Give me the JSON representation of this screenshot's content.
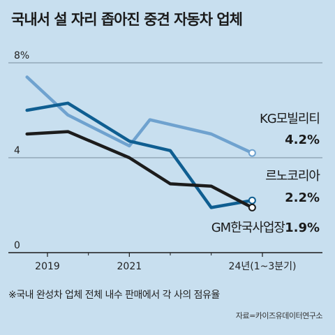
{
  "title": "국내서 설 자리 좁아진 중견 자동차 업체",
  "footnote": "※국내 완성차 업체 전체 내수 판매에서 각 사의 점유율",
  "source": "자료=카이즈유데이터연구소",
  "chart_data": {
    "type": "line",
    "title": "국내서 설 자리 좁아진 중견 자동차 업체",
    "ylim": [
      0,
      8
    ],
    "y_ticks": [
      "0",
      "4",
      "8%"
    ],
    "x_ticks": [
      "2019",
      "2021",
      "24년(1~3분기)"
    ],
    "x": [
      2018.5,
      2019,
      2019.5,
      2020,
      2020.5,
      2021,
      2021.5,
      2022,
      2022.5,
      2023,
      2023.5,
      2024.25
    ],
    "series": [
      {
        "name": "KG모빌리티",
        "label_value": "4.2%",
        "color": "#6fa2cf",
        "points": [
          [
            2018.5,
            7.4
          ],
          [
            2019.5,
            5.8
          ],
          [
            2021,
            4.5
          ],
          [
            2021.5,
            5.6
          ],
          [
            2023,
            5.0
          ],
          [
            2024,
            4.2
          ]
        ]
      },
      {
        "name": "르노코리아",
        "label_value": "2.2%",
        "color": "#0f5e91",
        "points": [
          [
            2018.5,
            6.0
          ],
          [
            2019.5,
            6.3
          ],
          [
            2021,
            4.7
          ],
          [
            2022,
            4.3
          ],
          [
            2023,
            1.9
          ],
          [
            2024,
            2.2
          ]
        ]
      },
      {
        "name": "GM한국사업장",
        "label_value": "1.9%",
        "color": "#1c1c1c",
        "points": [
          [
            2018.5,
            5.0
          ],
          [
            2019.5,
            5.1
          ],
          [
            2021,
            4.0
          ],
          [
            2022,
            2.9
          ],
          [
            2023,
            2.8
          ],
          [
            2024,
            1.9
          ]
        ]
      }
    ]
  }
}
